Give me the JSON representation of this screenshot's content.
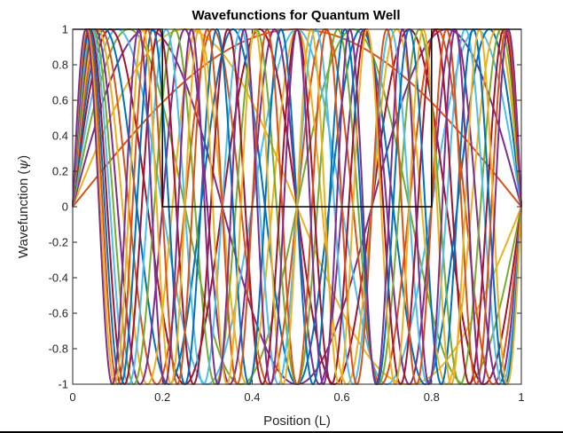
{
  "chart_data": {
    "type": "line",
    "title": "Wavefunctions for Quantum Well",
    "xlabel": "Position (L)",
    "ylabel_prefix": "Wavefunction  (",
    "ylabel_symbol": "ψ",
    "ylabel_suffix": ")",
    "xlim": [
      0,
      1
    ],
    "ylim": [
      -1,
      1
    ],
    "x_ticks": [
      0,
      0.2,
      0.4,
      0.6,
      0.8,
      1
    ],
    "x_tick_labels": [
      "0",
      "0.2",
      "0.4",
      "0.6",
      "0.8",
      "1"
    ],
    "y_ticks": [
      -1,
      -0.8,
      -0.6,
      -0.4,
      -0.2,
      0,
      0.2,
      0.4,
      0.6,
      0.8,
      1
    ],
    "y_tick_labels": [
      "-1",
      "-0.8",
      "-0.6",
      "-0.4",
      "-0.2",
      "0",
      "0.2",
      "0.4",
      "0.6",
      "0.8",
      "1"
    ],
    "grid": false,
    "legend": "none",
    "wave_function": "sin(n*pi*x)",
    "series": [
      {
        "n": 1,
        "color": "#D95319"
      },
      {
        "n": 2,
        "color": "#EDB120"
      },
      {
        "n": 3,
        "color": "#7E2F8E"
      },
      {
        "n": 4,
        "color": "#77AC30"
      },
      {
        "n": 5,
        "color": "#4DBEEE"
      },
      {
        "n": 6,
        "color": "#A2142F"
      },
      {
        "n": 7,
        "color": "#0072BD"
      },
      {
        "n": 8,
        "color": "#D95319"
      },
      {
        "n": 9,
        "color": "#EDB120"
      },
      {
        "n": 10,
        "color": "#7E2F8E"
      },
      {
        "n": 11,
        "color": "#77AC30"
      },
      {
        "n": 12,
        "color": "#4DBEEE"
      },
      {
        "n": 13,
        "color": "#A2142F"
      },
      {
        "n": 14,
        "color": "#0072BD"
      },
      {
        "n": 15,
        "color": "#D95319"
      },
      {
        "n": 16,
        "color": "#EDB120"
      },
      {
        "n": 17,
        "color": "#7E2F8E"
      }
    ],
    "potential_well": {
      "color": "#000000",
      "points": [
        [
          0,
          1
        ],
        [
          0.2,
          1
        ],
        [
          0.2,
          0
        ],
        [
          0.8,
          0
        ],
        [
          0.8,
          1
        ],
        [
          1,
          1
        ]
      ]
    }
  }
}
